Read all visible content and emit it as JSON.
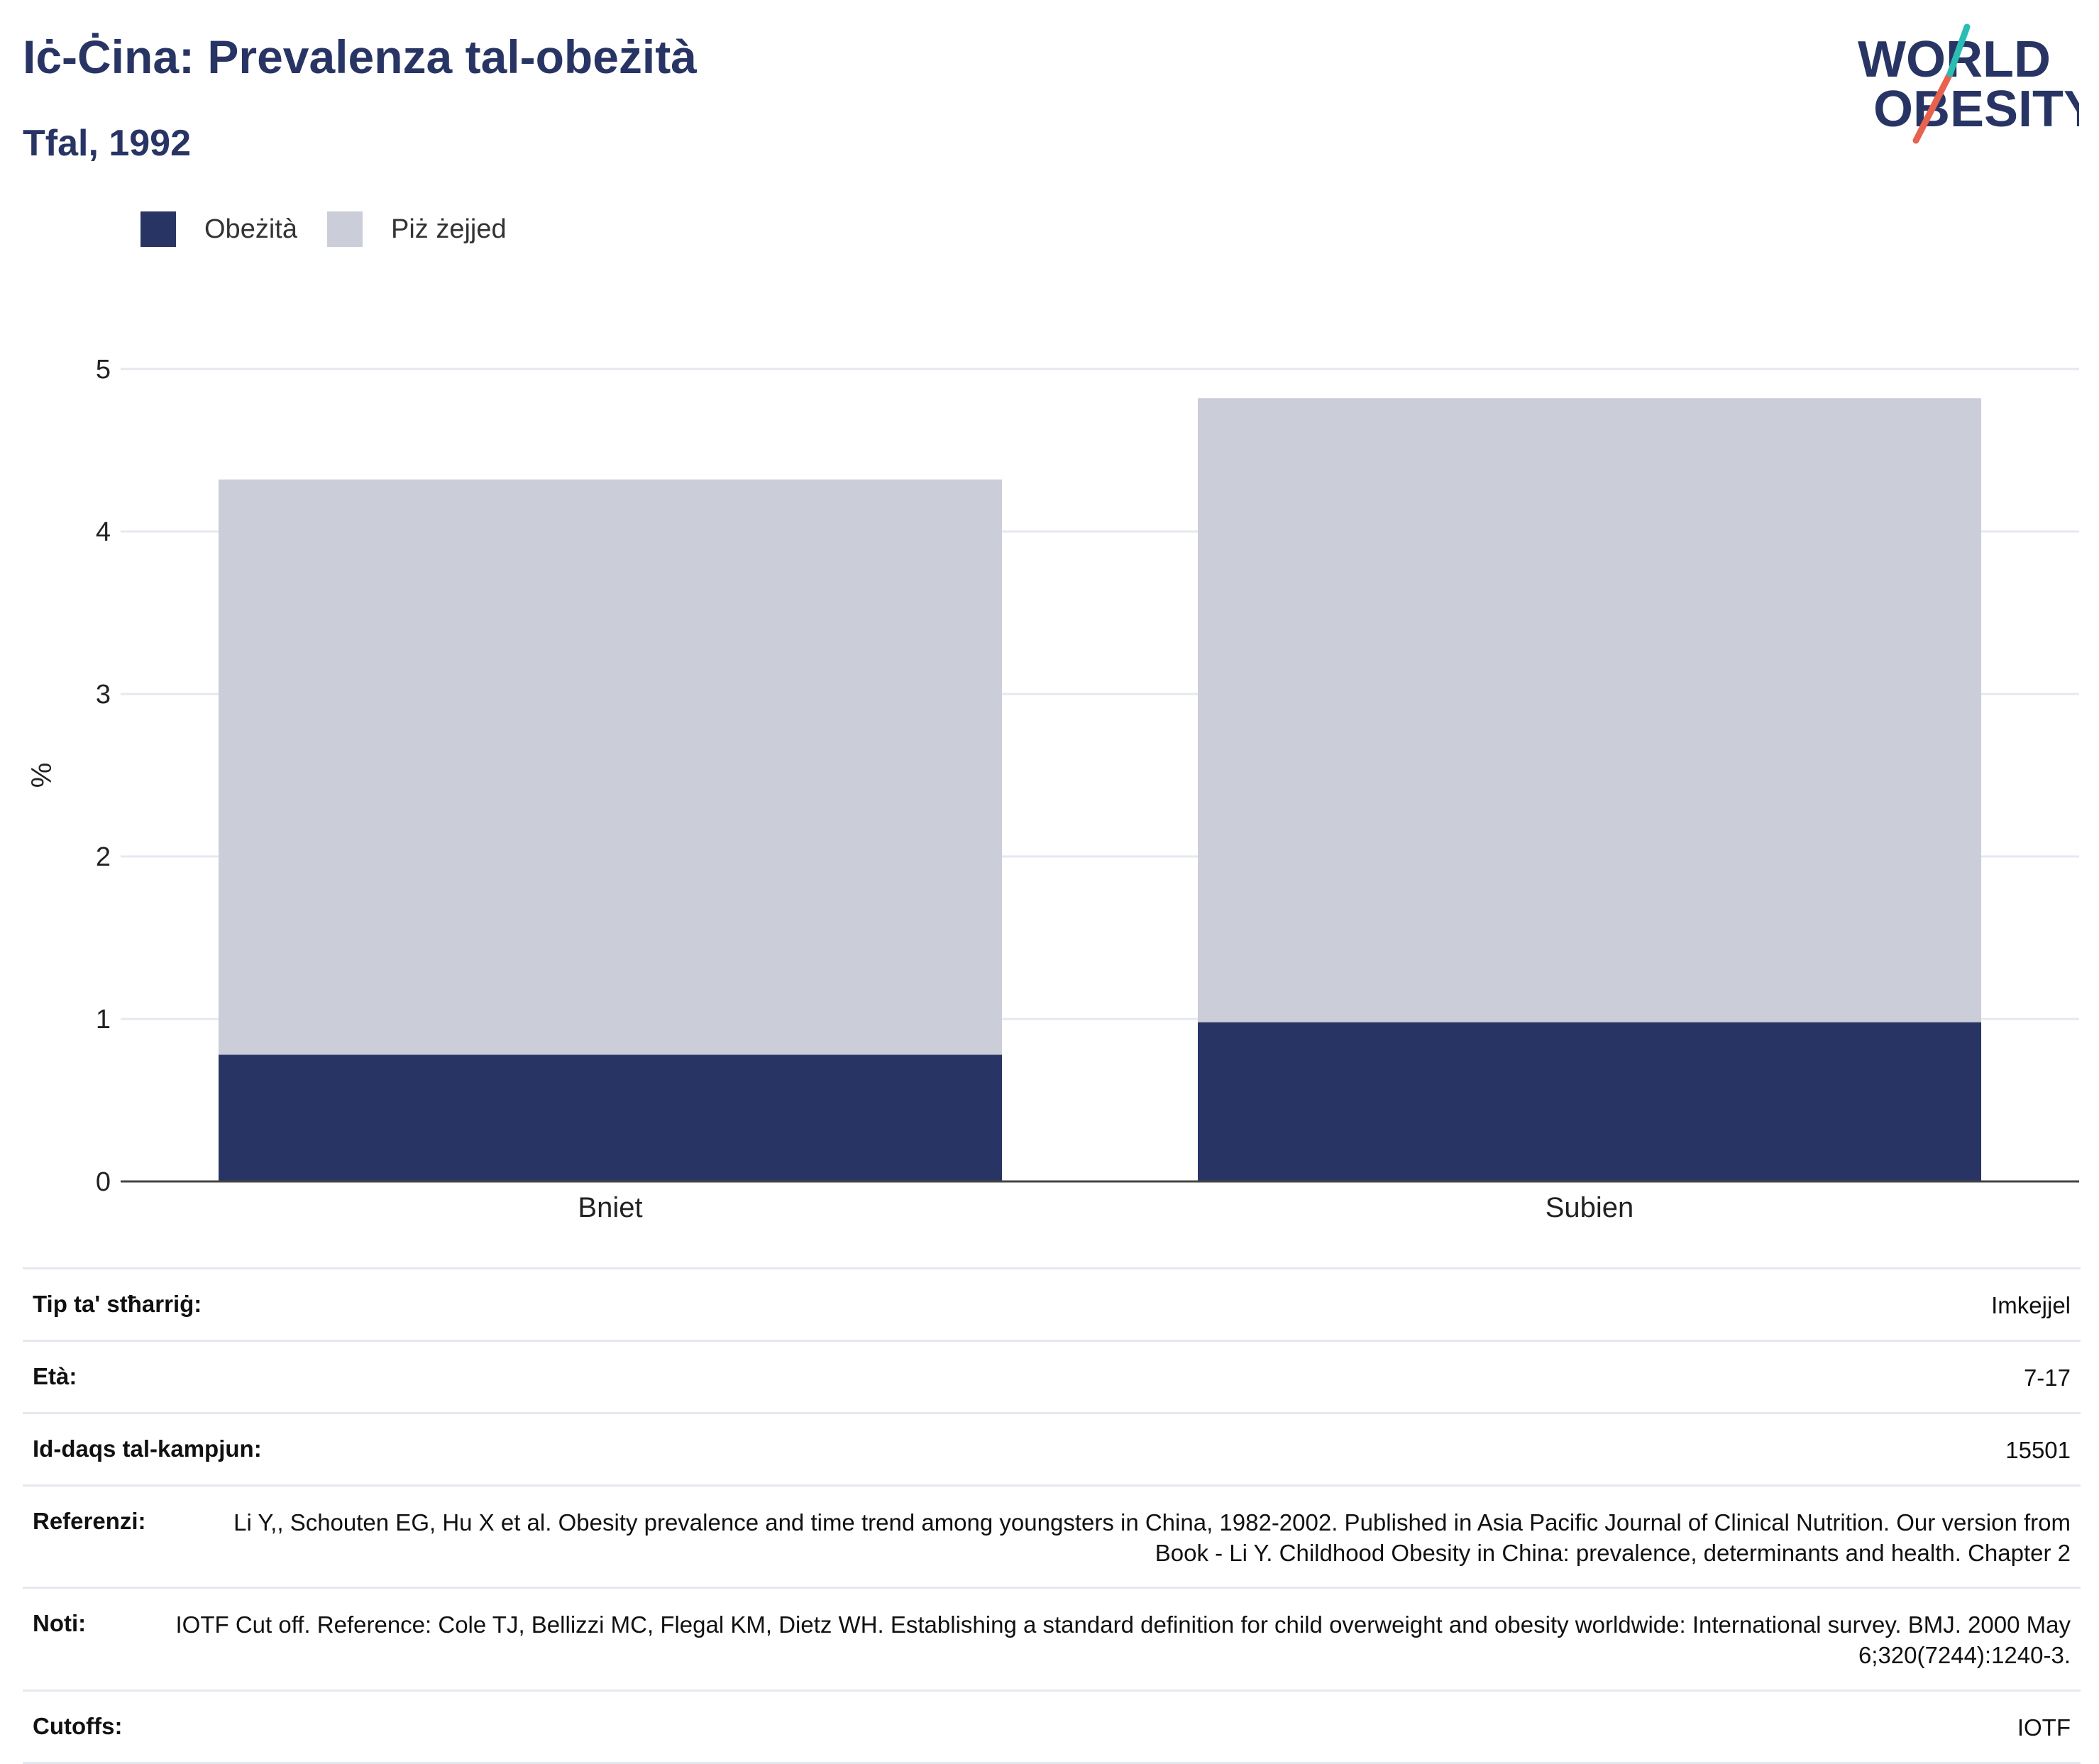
{
  "header": {
    "title": "Iċ-Ċina: Prevalenza tal-obeżità",
    "subtitle": "Tfal, 1992"
  },
  "logo": {
    "line1": "WORLD",
    "line2": "OBESITY",
    "name": "world-obesity-logo"
  },
  "colors": {
    "obesity": "#283564",
    "overweight": "#cbcdd8",
    "accent_red": "#e8624e",
    "accent_teal": "#2bbdb3"
  },
  "chart_data": {
    "type": "bar",
    "stacked": true,
    "categories": [
      "Bniet",
      "Subien"
    ],
    "series": [
      {
        "name": "Obeżità",
        "values": [
          0.78,
          0.98
        ],
        "color": "#283564"
      },
      {
        "name": "Piż żejjed",
        "values": [
          3.54,
          3.84
        ],
        "color": "#cbcdd8"
      }
    ],
    "totals": [
      4.32,
      4.82
    ],
    "ylabel": "%",
    "xlabel": "",
    "ylim": [
      0,
      5
    ],
    "yticks": [
      0,
      1,
      2,
      3,
      4,
      5
    ],
    "grid": true,
    "legend_position": "top-left"
  },
  "meta": [
    {
      "label": "Tip ta' stħarriġ:",
      "value": "Imkejjel"
    },
    {
      "label": "Età:",
      "value": "7-17"
    },
    {
      "label": "Id-daqs tal-kampjun:",
      "value": "15501"
    },
    {
      "label": "Referenzi:",
      "value": "Li Y,, Schouten EG, Hu X et al. Obesity prevalence and time trend among youngsters in China, 1982-2002. Published in Asia Pacific Journal of Clinical Nutrition. Our version from Book - Li Y. Childhood Obesity in China: prevalence, determinants and health. Chapter 2"
    },
    {
      "label": "Noti:",
      "value": "IOTF Cut off. Reference: Cole TJ, Bellizzi MC, Flegal KM, Dietz WH. Establishing a standard definition for child overweight and obesity worldwide: International survey. BMJ. 2000 May 6;320(7244):1240-3."
    },
    {
      "label": "Cutoffs:",
      "value": "IOTF"
    }
  ]
}
